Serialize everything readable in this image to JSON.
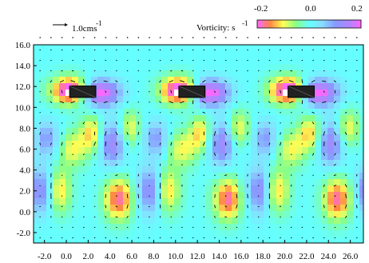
{
  "chart_data": {
    "type": "heatmap",
    "title": "",
    "xlabel": "",
    "ylabel": "",
    "xlim": [
      -3.0,
      27.2
    ],
    "ylim": [
      -3.0,
      16.0
    ],
    "x_ticks": [
      "-2.0",
      "0.0",
      "2.0",
      "4.0",
      "6.0",
      "8.0",
      "10.0",
      "12.0",
      "14.0",
      "16.0",
      "18.0",
      "20.0",
      "22.0",
      "24.0",
      "26.0"
    ],
    "y_ticks": [
      "16.0",
      "14.0",
      "12.0",
      "10.0",
      "8.0",
      "6.0",
      "4.0",
      "2.0",
      "0.0",
      "-2.0"
    ],
    "reference_vector": {
      "label": "1.0cms",
      "exponent": "-1"
    },
    "colorbar": {
      "label": "Vorticity: s",
      "exponent": "-1",
      "min_label": "-0.2",
      "mid_label": "0.0",
      "max_label": "0.2",
      "range": [
        -0.2,
        0.2
      ],
      "colors": [
        "#ff66ff",
        "#ff8844",
        "#ffff55",
        "#88ff88",
        "#66ffff",
        "#88ddff",
        "#8899ff",
        "#aa88ff",
        "#ff66ff"
      ]
    },
    "period_x": 10.0,
    "obstacles": [
      {
        "x_center": 1.5,
        "y_center": 11.5,
        "width": 2.4,
        "height": 1.1
      },
      {
        "x_center": 11.5,
        "y_center": 11.5,
        "width": 2.4,
        "height": 1.1
      },
      {
        "x_center": 21.5,
        "y_center": 11.5,
        "width": 2.4,
        "height": 1.1
      }
    ],
    "vorticity_features": [
      {
        "x": 0.4,
        "y": 11.6,
        "value": -0.25,
        "sx": 1.2,
        "sy": 0.9
      },
      {
        "x": 3.0,
        "y": 11.4,
        "value": 0.22,
        "sx": 1.3,
        "sy": 0.9
      },
      {
        "x": 2.3,
        "y": 7.5,
        "value": -0.12,
        "sx": 0.7,
        "sy": 1.2
      },
      {
        "x": 4.2,
        "y": 6.5,
        "value": 0.14,
        "sx": 0.8,
        "sy": 1.5
      },
      {
        "x": 5.8,
        "y": 8.0,
        "value": -0.1,
        "sx": 0.7,
        "sy": 1.2
      },
      {
        "x": 4.8,
        "y": 1.2,
        "value": -0.18,
        "sx": 0.9,
        "sy": 1.4
      },
      {
        "x": -0.8,
        "y": 2.0,
        "value": -0.14,
        "sx": 0.8,
        "sy": 1.5
      },
      {
        "x": 7.8,
        "y": 2.0,
        "value": 0.14,
        "sx": 0.9,
        "sy": 1.6
      },
      {
        "x": 0.6,
        "y": 6.0,
        "value": -0.1,
        "sx": 0.9,
        "sy": 1.2
      },
      {
        "x": -1.8,
        "y": 7.0,
        "value": 0.1,
        "sx": 0.8,
        "sy": 1.2
      }
    ]
  }
}
